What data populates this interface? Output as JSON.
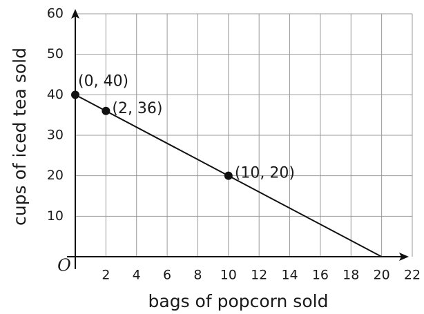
{
  "chart_data": {
    "type": "line",
    "x": [
      0,
      20
    ],
    "values": [
      40,
      0
    ],
    "points": {
      "x": [
        0,
        2,
        10
      ],
      "values": [
        40,
        36,
        20
      ],
      "labels": [
        "(0, 40)",
        "(2, 36)",
        "(10, 20)"
      ]
    },
    "xlim": [
      0,
      22
    ],
    "ylim": [
      0,
      60
    ],
    "xticks": [
      2,
      4,
      6,
      8,
      10,
      12,
      14,
      16,
      18,
      20,
      22
    ],
    "yticks": [
      10,
      20,
      30,
      40,
      50,
      60
    ],
    "grid": true,
    "origin_label": "O",
    "xlabel": "bags of popcorn sold",
    "ylabel": "cups of iced tea sold",
    "color": "#111111"
  }
}
